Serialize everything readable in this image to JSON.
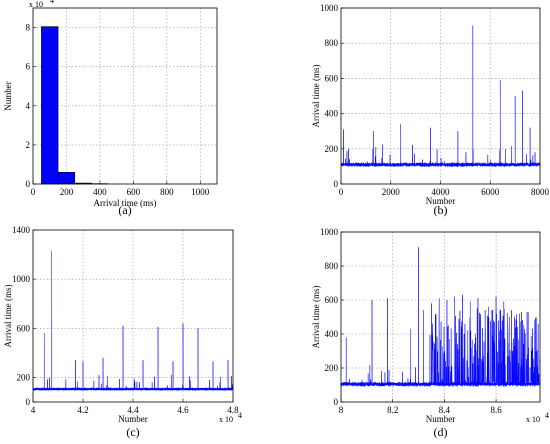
{
  "chart_data": [
    {
      "id": "a",
      "type": "bar",
      "panel_label": "(a)",
      "xlabel": "Arrival time (ms)",
      "ylabel": "Number",
      "y_multiplier": "x 10",
      "y_multiplier_exp": "4",
      "xlim": [
        0,
        1100
      ],
      "ylim": [
        0,
        9
      ],
      "xticks": [
        0,
        200,
        400,
        600,
        800,
        1000
      ],
      "yticks": [
        0,
        2,
        4,
        6,
        8
      ],
      "bin_edges": [
        50,
        150,
        250,
        350,
        450
      ],
      "values": [
        8.05,
        0.6,
        0.05,
        0.02
      ],
      "grid": true,
      "color": "#0000ff"
    },
    {
      "id": "b",
      "type": "line",
      "panel_label": "(b)",
      "xlabel": "Number",
      "ylabel": "Arrival time (ms)",
      "xlim": [
        0,
        8000
      ],
      "ylim": [
        0,
        1000
      ],
      "xticks": [
        0,
        2000,
        4000,
        6000,
        8000
      ],
      "yticks": [
        0,
        200,
        400,
        600,
        800,
        1000
      ],
      "baseline": 110,
      "noise": 12,
      "spikes": [
        [
          100,
          310
        ],
        [
          300,
          200
        ],
        [
          1300,
          300
        ],
        [
          2400,
          340
        ],
        [
          3600,
          320
        ],
        [
          4700,
          300
        ],
        [
          5300,
          900
        ],
        [
          6400,
          590
        ],
        [
          7000,
          500
        ],
        [
          7300,
          530
        ],
        [
          7600,
          320
        ],
        [
          7800,
          180
        ]
      ],
      "grid": true,
      "color": "#0000ff"
    },
    {
      "id": "c",
      "type": "line",
      "panel_label": "(c)",
      "xlabel": "Number",
      "ylabel": "Arrival time (ms)",
      "x_multiplier": "x 10",
      "x_multiplier_exp": "4",
      "xlim": [
        4,
        4.8
      ],
      "ylim": [
        0,
        1400
      ],
      "xticks": [
        4,
        4.2,
        4.4,
        4.6,
        4.8
      ],
      "yticks": [
        0,
        200,
        600,
        1000,
        1400
      ],
      "baseline": 105,
      "noise": 12,
      "spikes": [
        [
          4.045,
          560
        ],
        [
          4.075,
          1230
        ],
        [
          4.17,
          340
        ],
        [
          4.2,
          330
        ],
        [
          4.28,
          360
        ],
        [
          4.36,
          620
        ],
        [
          4.44,
          340
        ],
        [
          4.5,
          610
        ],
        [
          4.56,
          330
        ],
        [
          4.6,
          640
        ],
        [
          4.66,
          600
        ],
        [
          4.72,
          330
        ],
        [
          4.78,
          340
        ]
      ],
      "grid": true,
      "color": "#0000ff"
    },
    {
      "id": "d",
      "type": "line",
      "panel_label": "(d)",
      "xlabel": "Number",
      "ylabel": "Arrival time (ms)",
      "x_multiplier": "x 10",
      "x_multiplier_exp": "4",
      "xlim": [
        8,
        8.77
      ],
      "ylim": [
        0,
        1000
      ],
      "xticks": [
        8,
        8.2,
        8.4,
        8.6
      ],
      "yticks": [
        0,
        200,
        400,
        600,
        800,
        1000
      ],
      "baseline": 105,
      "noise": 14,
      "spikes": [
        [
          8.02,
          380
        ],
        [
          8.12,
          600
        ],
        [
          8.18,
          610
        ],
        [
          8.3,
          910
        ],
        [
          8.27,
          430
        ],
        [
          8.32,
          540
        ],
        [
          8.35,
          580
        ],
        [
          8.38,
          610
        ],
        [
          8.41,
          600
        ],
        [
          8.44,
          620
        ],
        [
          8.47,
          630
        ],
        [
          8.5,
          590
        ],
        [
          8.53,
          610
        ],
        [
          8.57,
          560
        ],
        [
          8.6,
          620
        ],
        [
          8.63,
          590
        ],
        [
          8.66,
          540
        ],
        [
          8.69,
          520
        ],
        [
          8.72,
          530
        ],
        [
          8.75,
          480
        ]
      ],
      "dense_from": 8.34,
      "dense_max": 550,
      "grid": true,
      "color": "#0000ff"
    }
  ]
}
